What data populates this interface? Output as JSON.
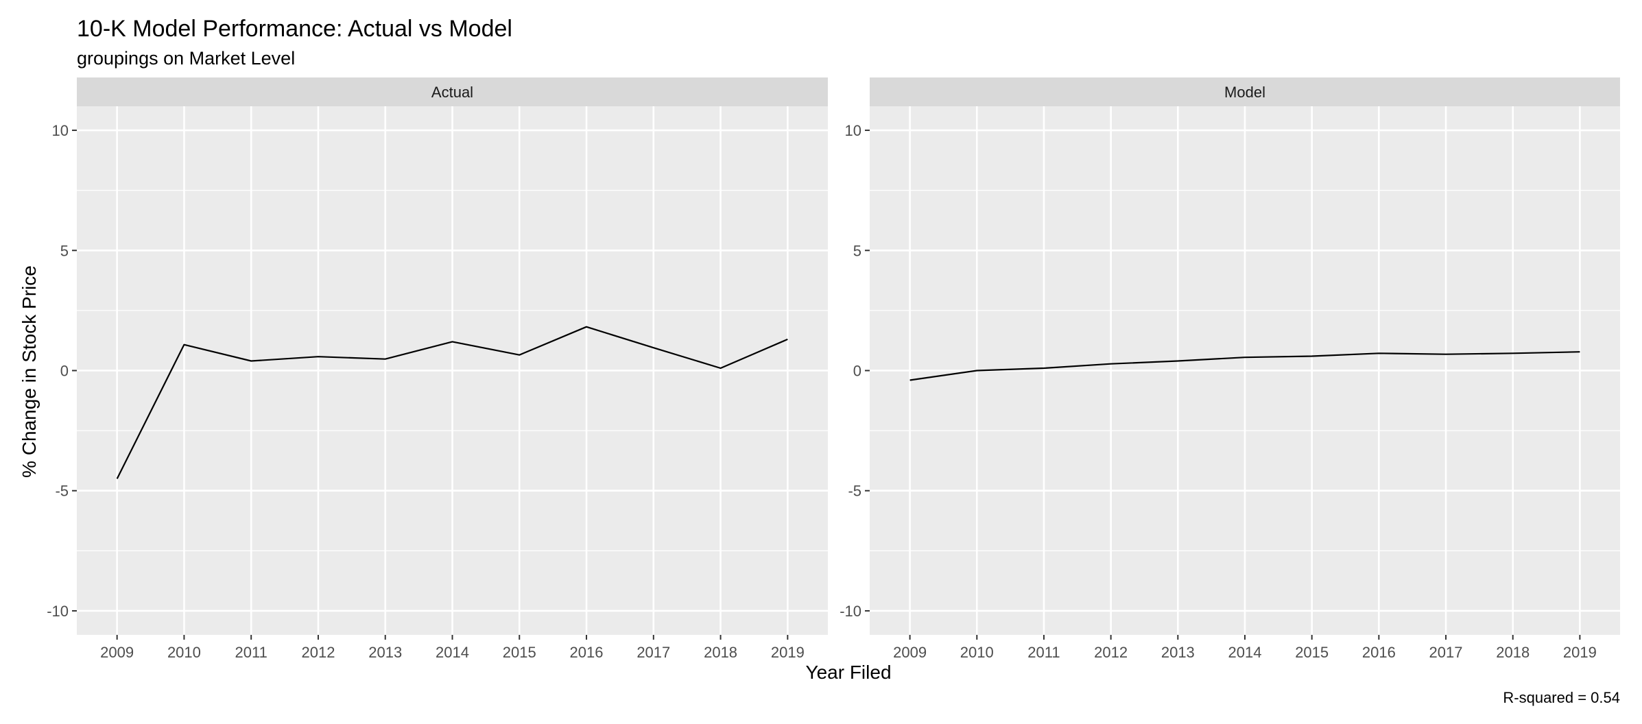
{
  "chart_data": {
    "type": "line",
    "title": "10-K Model Performance: Actual vs Model",
    "subtitle": "groupings on Market Level",
    "xlabel": "Year Filed",
    "ylabel": "% Change in Stock Price",
    "caption": "R-squared = 0.54",
    "x": [
      2009,
      2010,
      2011,
      2012,
      2013,
      2014,
      2015,
      2016,
      2017,
      2018,
      2019
    ],
    "ylim": [
      -11,
      11
    ],
    "y_ticks": [
      -10,
      -5,
      0,
      5,
      10
    ],
    "grid": true,
    "legend": "none",
    "colors": {
      "line": "#000000",
      "panel_bg": "#ebebeb",
      "strip_bg": "#d9d9d9",
      "grid": "#ffffff"
    },
    "panels": [
      {
        "name": "Actual",
        "values": [
          -4.5,
          1.08,
          0.4,
          0.58,
          0.48,
          1.2,
          0.65,
          1.82,
          0.95,
          0.1,
          1.3
        ]
      },
      {
        "name": "Model",
        "values": [
          -0.4,
          0.0,
          0.1,
          0.28,
          0.4,
          0.55,
          0.6,
          0.72,
          0.68,
          0.72,
          0.78
        ]
      }
    ]
  }
}
